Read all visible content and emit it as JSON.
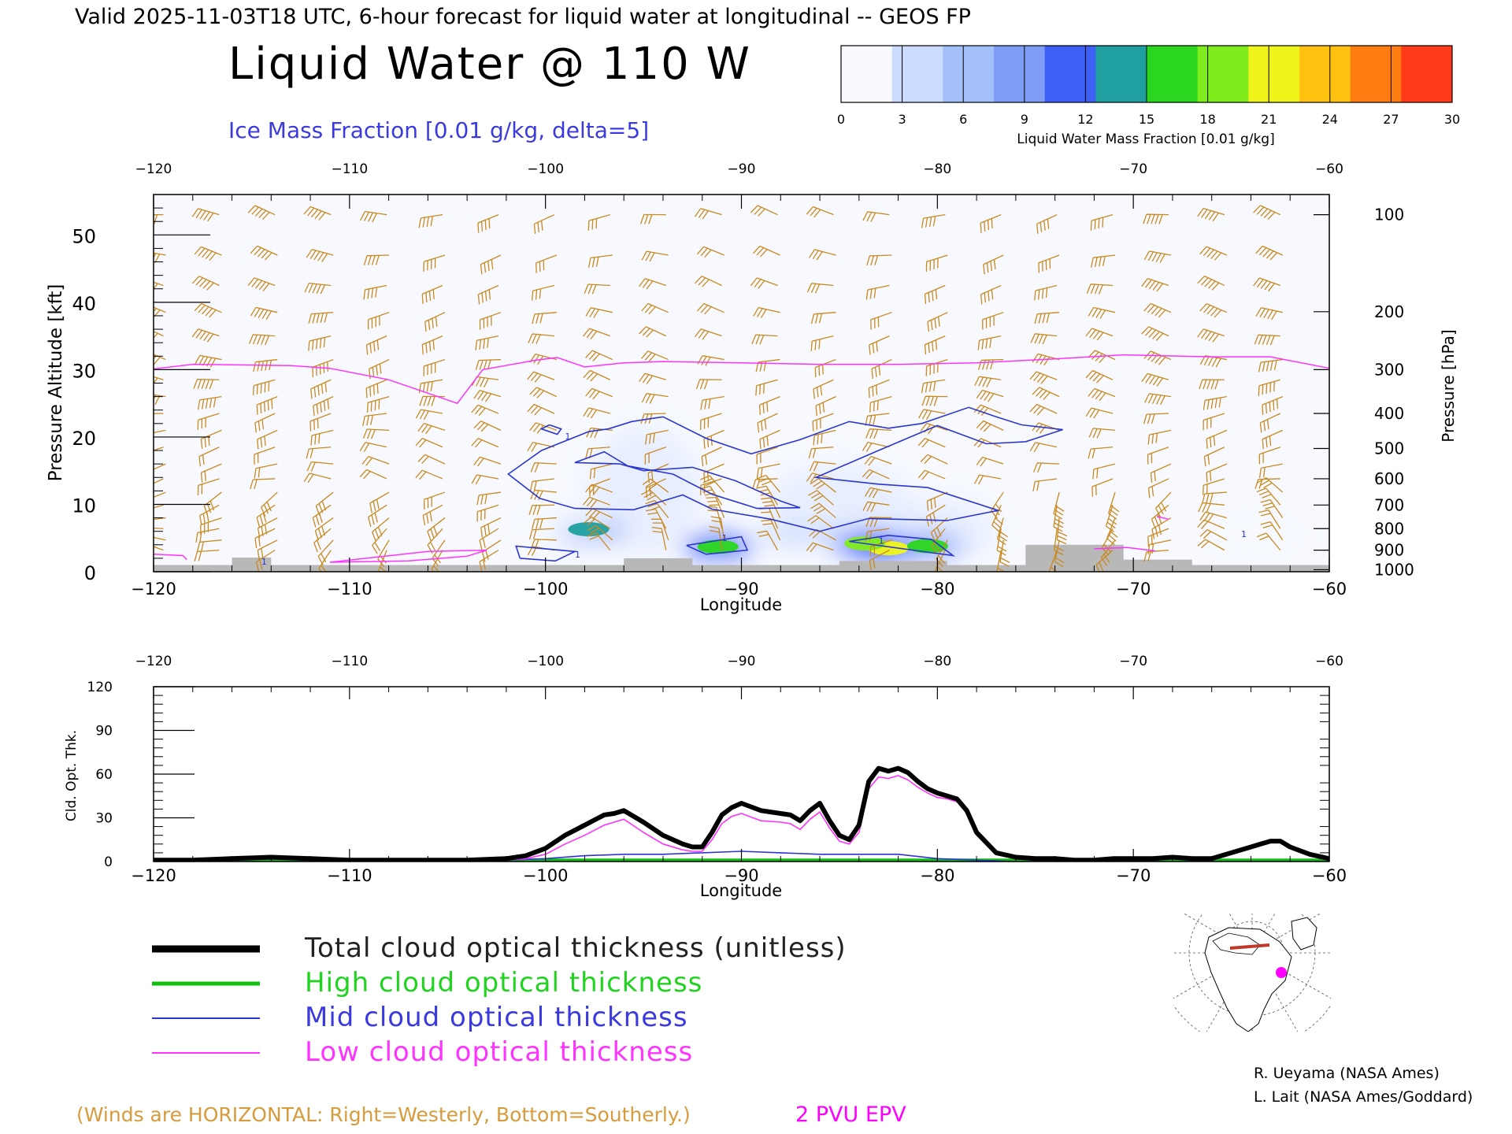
{
  "header": {
    "valid_line": "Valid 2025-11-03T18 UTC, 6-hour forecast for liquid water at longitudinal -- GEOS FP",
    "main_title": "Liquid Water @ 110 W",
    "contour_label": "Ice Mass Fraction [0.01 g/kg, delta=5]"
  },
  "colorbar": {
    "ticks": [
      "0",
      "3",
      "6",
      "9",
      "12",
      "15",
      "18",
      "21",
      "24",
      "27",
      "30"
    ],
    "label": "Liquid Water Mass Fraction [0.01 g/kg]",
    "colors": [
      "#f7f9ff",
      "#ccdcff",
      "#a4c0fb",
      "#7f9df7",
      "#3d5ff5",
      "#1f9fa0",
      "#2ad61f",
      "#7fec1c",
      "#eff51a",
      "#ffc210",
      "#ff7d10",
      "#ff3a1a"
    ]
  },
  "colors": {
    "wind_barb": "#c98a1e",
    "epv_line": "#ff33ff",
    "ice_contour": "#2b36d0",
    "terrain": "#b8b8b8",
    "total_line": "#000000",
    "high_line": "#10c010",
    "mid_line": "#2b36d0",
    "low_line": "#ff33ff",
    "footnote": "#d89b3c"
  },
  "chart_data": [
    {
      "type": "heatmap",
      "title": "Liquid Water @ 110 W",
      "xlabel": "Longitude",
      "ylabel": "Pressure Altitude [kft]",
      "y2label": "Pressure [hPa]",
      "xlim": [
        -120,
        -60
      ],
      "ylim": [
        0,
        56
      ],
      "x_ticks": [
        "−120",
        "−110",
        "−100",
        "−90",
        "−80",
        "−70",
        "−60"
      ],
      "y_ticks": [
        "0",
        "10",
        "20",
        "30",
        "40",
        "50"
      ],
      "pressure_ticks": [
        "100",
        "200",
        "300",
        "400",
        "500",
        "600",
        "700",
        "800",
        "900",
        "1000"
      ],
      "pressure_tick_kft": [
        53,
        38.6,
        30,
        23.5,
        18.3,
        13.8,
        9.9,
        6.4,
        3.2,
        0.3
      ],
      "liquid_water_blobs": [
        {
          "lon": -97.8,
          "kft": 6.3,
          "value": 14
        },
        {
          "lon": -91.2,
          "kft": 3.7,
          "value": 17
        },
        {
          "lon": -82.5,
          "kft": 3.5,
          "value": 20
        },
        {
          "lon": -83.7,
          "kft": 4.2,
          "value": 18
        },
        {
          "lon": -80.5,
          "kft": 3.8,
          "value": 15
        },
        {
          "lon": -87.0,
          "kft": 5.5,
          "value": 5
        },
        {
          "lon": -64.0,
          "kft": 5.5,
          "value": 4
        },
        {
          "lon": -99.0,
          "kft": 7.5,
          "value": 3
        }
      ],
      "ice_contour_label": "1",
      "ice_contours": [
        [
          [
            -97.8,
            20.8
          ],
          [
            -96.8,
            21.2
          ],
          [
            -95.6,
            22.3
          ],
          [
            -94.0,
            23.0
          ],
          [
            -91.8,
            19.8
          ],
          [
            -89.5,
            17.5
          ],
          [
            -87.0,
            19.6
          ],
          [
            -84.5,
            22.3
          ],
          [
            -82.5,
            21.3
          ],
          [
            -80.8,
            22.0
          ],
          [
            -78.4,
            24.4
          ],
          [
            -77.0,
            23.0
          ],
          [
            -75.7,
            21.8
          ],
          [
            -73.6,
            21.1
          ],
          [
            -75.5,
            19.3
          ],
          [
            -77.5,
            19.0
          ],
          [
            -80.0,
            21.7
          ],
          [
            -83.0,
            18.0
          ],
          [
            -86.2,
            14.0
          ],
          [
            -83.0,
            13.0
          ],
          [
            -80.5,
            12.5
          ],
          [
            -76.9,
            9.1
          ],
          [
            -79.5,
            7.6
          ],
          [
            -83.5,
            7.9
          ],
          [
            -86.0,
            6.0
          ],
          [
            -88.5,
            7.8
          ],
          [
            -91.5,
            9.3
          ],
          [
            -93.0,
            11.4
          ],
          [
            -95.5,
            9.2
          ],
          [
            -98.5,
            9.4
          ],
          [
            -100.3,
            10.9
          ],
          [
            -101.9,
            14.5
          ],
          [
            -100.2,
            18.0
          ],
          [
            -97.8,
            20.8
          ]
        ],
        [
          [
            -96.2,
            16.0
          ],
          [
            -95.0,
            15.0
          ],
          [
            -92.5,
            15.5
          ],
          [
            -90.3,
            13.5
          ],
          [
            -88.0,
            10.5
          ],
          [
            -87.0,
            9.5
          ],
          [
            -89.2,
            9.4
          ],
          [
            -91.5,
            11.5
          ],
          [
            -93.5,
            14.5
          ],
          [
            -95.8,
            15.7
          ],
          [
            -97.0,
            17.8
          ],
          [
            -98.5,
            16.2
          ],
          [
            -96.2,
            16.0
          ]
        ],
        [
          [
            -101.3,
            2.0
          ],
          [
            -99.5,
            1.6
          ],
          [
            -98.5,
            3.0
          ],
          [
            -101.5,
            3.8
          ],
          [
            -101.3,
            2.0
          ]
        ],
        [
          [
            -92.8,
            3.9
          ],
          [
            -90.0,
            5.2
          ],
          [
            -89.7,
            3.2
          ],
          [
            -91.8,
            2.6
          ],
          [
            -92.8,
            3.9
          ]
        ],
        [
          [
            -84.5,
            4.5
          ],
          [
            -82.5,
            5.4
          ],
          [
            -80.3,
            4.8
          ],
          [
            -79.2,
            2.4
          ],
          [
            -84.5,
            4.5
          ]
        ],
        [
          [
            -99.8,
            21.8
          ],
          [
            -99.2,
            21.2
          ],
          [
            -99.4,
            20.4
          ],
          [
            -100.2,
            21.2
          ],
          [
            -99.8,
            21.8
          ]
        ]
      ],
      "epv_2pvu_line": [
        [
          -120,
          30.1
        ],
        [
          -118,
          30.8
        ],
        [
          -113.0,
          30.6
        ],
        [
          -111,
          30.2
        ],
        [
          -108,
          28.5
        ],
        [
          -105.5,
          26.0
        ],
        [
          -104.5,
          25.0
        ],
        [
          -103.2,
          30.0
        ],
        [
          -100.5,
          31.4
        ],
        [
          -99.4,
          31.8
        ],
        [
          -98.0,
          30.4
        ],
        [
          -96.0,
          31.0
        ],
        [
          -94.0,
          31.2
        ],
        [
          -90.0,
          31.0
        ],
        [
          -86.0,
          30.8
        ],
        [
          -82.0,
          30.8
        ],
        [
          -78.0,
          31.0
        ],
        [
          -74.0,
          31.6
        ],
        [
          -70.5,
          32.2
        ],
        [
          -66.0,
          31.9
        ],
        [
          -63.0,
          31.9
        ],
        [
          -60.0,
          30.2
        ]
      ],
      "terrain": [
        [
          -120,
          0
        ],
        [
          -120,
          1.0
        ],
        [
          -116,
          1.0
        ],
        [
          -116,
          2.1
        ],
        [
          -114,
          2.1
        ],
        [
          -114,
          1.0
        ],
        [
          -96,
          1.0
        ],
        [
          -96,
          2.0
        ],
        [
          -92.5,
          2.0
        ],
        [
          -92.5,
          1.0
        ],
        [
          -85,
          1.0
        ],
        [
          -85,
          1.6
        ],
        [
          -79.5,
          1.6
        ],
        [
          -79.5,
          1.0
        ],
        [
          -75.5,
          1.0
        ],
        [
          -75.5,
          4.0
        ],
        [
          -70.5,
          4.0
        ],
        [
          -70.5,
          1.8
        ],
        [
          -67,
          1.8
        ],
        [
          -67,
          1.0
        ],
        [
          -60,
          1.0
        ],
        [
          -60,
          0
        ]
      ]
    },
    {
      "type": "line",
      "xlabel": "Longitude",
      "ylabel": "Cld. Opt. Thk.",
      "xlim": [
        -120,
        -60
      ],
      "ylim": [
        0,
        120
      ],
      "x_ticks": [
        "−120",
        "−110",
        "−100",
        "−90",
        "−80",
        "−70",
        "−60"
      ],
      "y_ticks": [
        "0",
        "30",
        "60",
        "90",
        "120"
      ],
      "series": [
        {
          "name": "Total cloud optical thickness (unitless)",
          "x": [
            -120,
            -118,
            -116,
            -114,
            -112,
            -110,
            -108,
            -106,
            -104,
            -102,
            -101,
            -100,
            -99,
            -98,
            -97,
            -96.5,
            -96,
            -95,
            -94,
            -93,
            -92.5,
            -92,
            -91.5,
            -91,
            -90.5,
            -90,
            -89,
            -88,
            -87.5,
            -87,
            -86.5,
            -86,
            -85.5,
            -85,
            -84.5,
            -84,
            -83.5,
            -83,
            -82.5,
            -82,
            -81.5,
            -81,
            -80.5,
            -80,
            -79.5,
            -79,
            -78.5,
            -78,
            -77,
            -76,
            -75,
            -74,
            -73,
            -72,
            -71,
            -70,
            -69,
            -68,
            -67,
            -66,
            -65,
            -64,
            -63.5,
            -63,
            -62.5,
            -62,
            -61,
            -60
          ],
          "values": [
            1,
            1,
            2,
            3,
            2,
            1,
            1,
            1,
            1,
            2,
            4,
            9,
            18,
            25,
            32,
            33,
            35,
            27,
            18,
            12,
            10,
            10,
            20,
            32,
            37,
            40,
            35,
            33,
            32,
            28,
            35,
            40,
            28,
            18,
            15,
            25,
            55,
            64,
            62,
            64,
            61,
            55,
            50,
            47,
            45,
            43,
            35,
            20,
            6,
            3,
            2,
            2,
            1,
            1,
            2,
            2,
            2,
            3,
            2,
            2,
            6,
            10,
            12,
            14,
            14,
            10,
            5,
            2
          ]
        },
        {
          "name": "High cloud optical thickness",
          "x": [
            -120,
            -60
          ],
          "values": [
            1,
            1
          ]
        },
        {
          "name": "Mid cloud optical thickness",
          "x": [
            -120,
            -116,
            -110,
            -105,
            -102,
            -100,
            -98,
            -96,
            -94,
            -92,
            -90,
            -88,
            -86,
            -84,
            -82,
            -80,
            -78,
            -76,
            -72,
            -68,
            -64,
            -60
          ],
          "values": [
            0,
            0,
            0,
            0,
            1,
            2,
            4,
            5,
            5,
            6,
            7,
            6,
            5,
            5,
            5,
            2,
            1,
            0,
            0,
            0,
            0,
            0
          ]
        },
        {
          "name": "Low cloud optical thickness",
          "x": [
            -120,
            -118,
            -116,
            -114,
            -112,
            -110,
            -108,
            -106,
            -104,
            -102,
            -101,
            -100,
            -99,
            -98,
            -97,
            -96.5,
            -96,
            -95,
            -94,
            -93,
            -92.5,
            -92,
            -91.5,
            -91,
            -90.5,
            -90,
            -89,
            -88,
            -87.5,
            -87,
            -86.5,
            -86,
            -85.5,
            -85,
            -84.5,
            -84,
            -83.5,
            -83,
            -82.5,
            -82,
            -81.5,
            -81,
            -80.5,
            -80,
            -79.5,
            -79,
            -78.5,
            -78,
            -77,
            -76,
            -75,
            -74,
            -73,
            -72,
            -71,
            -70,
            -69,
            -68,
            -67,
            -66,
            -65,
            -64,
            -63.5,
            -63,
            -62.5,
            -62,
            -61,
            -60
          ],
          "values": [
            1,
            1,
            2,
            2,
            2,
            1,
            1,
            1,
            1,
            1,
            2,
            5,
            12,
            18,
            25,
            27,
            29,
            20,
            12,
            8,
            7,
            7,
            15,
            26,
            31,
            33,
            28,
            27,
            26,
            22,
            29,
            34,
            23,
            14,
            12,
            20,
            50,
            58,
            57,
            59,
            56,
            51,
            47,
            44,
            43,
            41,
            33,
            18,
            5,
            2,
            2,
            2,
            1,
            1,
            1,
            2,
            2,
            2,
            2,
            2,
            5,
            9,
            11,
            13,
            13,
            9,
            4,
            2
          ]
        }
      ]
    }
  ],
  "legend": {
    "items": [
      {
        "label": "Total cloud optical thickness (unitless)"
      },
      {
        "label": "High cloud optical thickness"
      },
      {
        "label": "Mid cloud optical thickness"
      },
      {
        "label": "Low cloud optical thickness"
      }
    ]
  },
  "footer": {
    "winds_note": "(Winds are HORIZONTAL: Right=Westerly, Bottom=Southerly.)",
    "epv_note": "2 PVU EPV",
    "credit_1": "R. Ueyama (NASA Ames)",
    "credit_2": "L. Lait (NASA Ames/Goddard)"
  },
  "map_inset": {
    "section_line_color": "#c0392b",
    "marker_color": "#ff00ff"
  }
}
